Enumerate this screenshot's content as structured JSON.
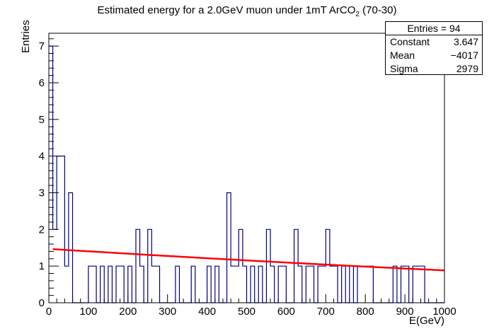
{
  "chart_data": {
    "type": "histogram",
    "title_main": "Estimated energy for a 2.0GeV muon under 1mT ArCO",
    "title_sub": "2",
    "title_tail": " (70-30)",
    "xlabel": "E(GeV)",
    "ylabel": "Entries",
    "xlim": [
      0,
      1000
    ],
    "ylim": [
      0,
      7.35
    ],
    "xticks": [
      0,
      100,
      200,
      300,
      400,
      500,
      600,
      700,
      800,
      900,
      1000
    ],
    "yticks": [
      0,
      1,
      2,
      3,
      4,
      5,
      6,
      7
    ],
    "bin_width": 10,
    "bins": [
      {
        "x": 0,
        "count": 7
      },
      {
        "x": 10,
        "count": 2
      },
      {
        "x": 20,
        "count": 4
      },
      {
        "x": 30,
        "count": 4
      },
      {
        "x": 40,
        "count": 1
      },
      {
        "x": 50,
        "count": 3
      },
      {
        "x": 100,
        "count": 1
      },
      {
        "x": 110,
        "count": 1
      },
      {
        "x": 130,
        "count": 1
      },
      {
        "x": 150,
        "count": 1
      },
      {
        "x": 170,
        "count": 1
      },
      {
        "x": 180,
        "count": 1
      },
      {
        "x": 200,
        "count": 1
      },
      {
        "x": 220,
        "count": 2
      },
      {
        "x": 230,
        "count": 1
      },
      {
        "x": 250,
        "count": 2
      },
      {
        "x": 260,
        "count": 1
      },
      {
        "x": 270,
        "count": 1
      },
      {
        "x": 320,
        "count": 1
      },
      {
        "x": 360,
        "count": 1
      },
      {
        "x": 400,
        "count": 1
      },
      {
        "x": 420,
        "count": 1
      },
      {
        "x": 450,
        "count": 3
      },
      {
        "x": 460,
        "count": 1
      },
      {
        "x": 470,
        "count": 1
      },
      {
        "x": 480,
        "count": 2
      },
      {
        "x": 490,
        "count": 1
      },
      {
        "x": 510,
        "count": 1
      },
      {
        "x": 530,
        "count": 1
      },
      {
        "x": 550,
        "count": 2
      },
      {
        "x": 560,
        "count": 1
      },
      {
        "x": 580,
        "count": 1
      },
      {
        "x": 590,
        "count": 1
      },
      {
        "x": 620,
        "count": 2
      },
      {
        "x": 630,
        "count": 1
      },
      {
        "x": 650,
        "count": 1
      },
      {
        "x": 660,
        "count": 1
      },
      {
        "x": 680,
        "count": 1
      },
      {
        "x": 690,
        "count": 1
      },
      {
        "x": 700,
        "count": 2
      },
      {
        "x": 710,
        "count": 1
      },
      {
        "x": 720,
        "count": 1
      },
      {
        "x": 740,
        "count": 1
      },
      {
        "x": 760,
        "count": 1
      },
      {
        "x": 780,
        "count": 1
      },
      {
        "x": 790,
        "count": 1
      },
      {
        "x": 800,
        "count": 1
      },
      {
        "x": 810,
        "count": 1
      },
      {
        "x": 870,
        "count": 1
      },
      {
        "x": 890,
        "count": 1
      },
      {
        "x": 900,
        "count": 1
      },
      {
        "x": 920,
        "count": 1
      },
      {
        "x": 930,
        "count": 1
      },
      {
        "x": 940,
        "count": 1
      }
    ],
    "fit": {
      "type": "gaussian",
      "constant": 3.647,
      "mean": -4017,
      "sigma": 2979,
      "x_range": [
        10,
        1000
      ]
    },
    "stats_box": {
      "entries_label": "Entries = 94",
      "constant_label": "Constant",
      "constant_value": "3.647",
      "mean_label": "Mean",
      "mean_value": "−4017",
      "sigma_label": "Sigma",
      "sigma_value": "2979"
    },
    "colors": {
      "histogram": "#000080",
      "fit": "#ff0000",
      "axis": "#000000"
    }
  }
}
